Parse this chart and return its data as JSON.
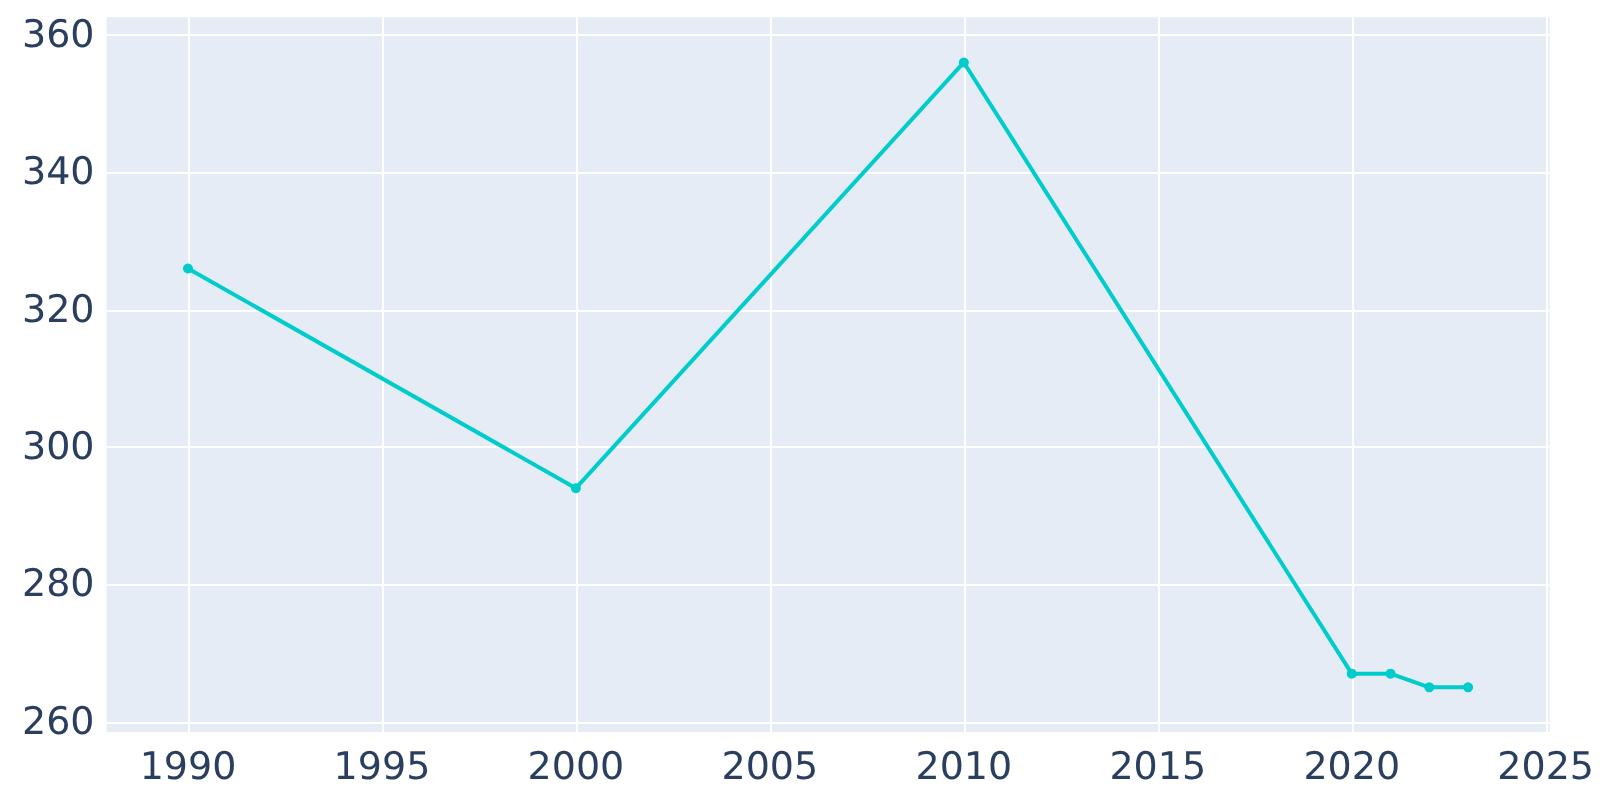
{
  "chart_data": {
    "type": "line",
    "x": [
      1990,
      2000,
      2010,
      2020,
      2021,
      2022,
      2023
    ],
    "series": [
      {
        "color": "#00cccc",
        "values": [
          326,
          294,
          356,
          267,
          267,
          265,
          265
        ]
      }
    ],
    "xlim": [
      1987.9,
      2025.1
    ],
    "xticks": [
      1990,
      1995,
      2000,
      2005,
      2010,
      2015,
      2020,
      2025
    ],
    "ylim": [
      258.5,
      362.6
    ],
    "yticks": [
      260,
      280,
      300,
      320,
      340,
      360
    ],
    "grid": true,
    "marker": "circle",
    "line_style": "solid"
  }
}
